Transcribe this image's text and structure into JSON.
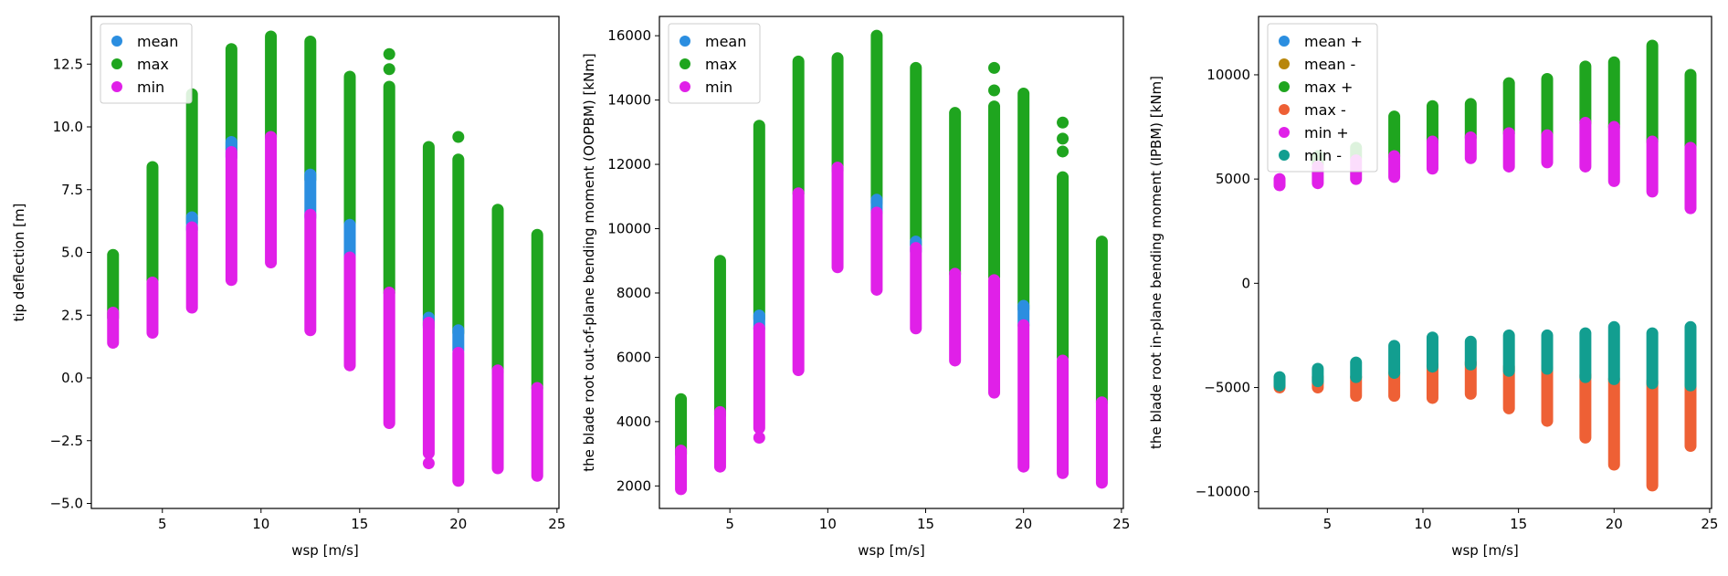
{
  "chart_data": [
    {
      "type": "scatter",
      "xlabel": "wsp [m/s]",
      "ylabel": "tip deflection [m]",
      "xlim": [
        1.4,
        25.1
      ],
      "ylim": [
        -5.2,
        14.4
      ],
      "xticks": [
        5,
        10,
        15,
        20,
        25
      ],
      "yticks": [
        -5.0,
        -2.5,
        0.0,
        2.5,
        5.0,
        7.5,
        10.0,
        12.5
      ],
      "ytick_decimals": 1,
      "legend_position": "top-left",
      "series": [
        {
          "name": "max",
          "color": "#1fa51f",
          "ranges": [
            {
              "x": 2.5,
              "low": 2.4,
              "high": 4.9
            },
            {
              "x": 4.5,
              "low": 3.9,
              "high": 8.4
            },
            {
              "x": 6.5,
              "low": 6.2,
              "high": 11.3
            },
            {
              "x": 8.5,
              "low": 9.1,
              "high": 13.1
            },
            {
              "x": 10.5,
              "low": 9.6,
              "high": 13.6
            },
            {
              "x": 12.5,
              "low": 7.9,
              "high": 13.4
            },
            {
              "x": 14.5,
              "low": 6.0,
              "high": 12.0
            },
            {
              "x": 16.5,
              "low": 3.4,
              "high": 11.6
            },
            {
              "x": 18.5,
              "low": 2.1,
              "high": 9.2
            },
            {
              "x": 20.0,
              "low": 1.8,
              "high": 8.7
            },
            {
              "x": 22.0,
              "low": 0.2,
              "high": 6.7
            },
            {
              "x": 24.0,
              "low": -0.4,
              "high": 5.7
            }
          ],
          "extras": [
            {
              "x": 16.5,
              "y": 12.3
            },
            {
              "x": 16.5,
              "y": 12.9
            },
            {
              "x": 20.0,
              "y": 9.6
            }
          ]
        },
        {
          "name": "mean",
          "color": "#2b8ee0",
          "ranges": [
            {
              "x": 6.5,
              "low": 5.9,
              "high": 6.4
            },
            {
              "x": 8.5,
              "low": 8.8,
              "high": 9.4
            },
            {
              "x": 12.5,
              "low": 6.4,
              "high": 8.1
            },
            {
              "x": 14.5,
              "low": 4.6,
              "high": 6.1
            },
            {
              "x": 18.5,
              "low": 2.0,
              "high": 2.4
            },
            {
              "x": 20.0,
              "low": 1.1,
              "high": 1.9
            }
          ],
          "extras": []
        },
        {
          "name": "min",
          "color": "#e020e8",
          "ranges": [
            {
              "x": 2.5,
              "low": 1.4,
              "high": 2.6
            },
            {
              "x": 4.5,
              "low": 1.8,
              "high": 3.8
            },
            {
              "x": 6.5,
              "low": 2.8,
              "high": 6.0
            },
            {
              "x": 8.5,
              "low": 3.9,
              "high": 9.0
            },
            {
              "x": 10.5,
              "low": 4.6,
              "high": 9.6
            },
            {
              "x": 12.5,
              "low": 1.9,
              "high": 6.5
            },
            {
              "x": 14.5,
              "low": 0.5,
              "high": 4.8
            },
            {
              "x": 16.5,
              "low": -1.8,
              "high": 3.4
            },
            {
              "x": 18.5,
              "low": -3.0,
              "high": 2.2
            },
            {
              "x": 20.0,
              "low": -4.1,
              "high": 1.0
            },
            {
              "x": 22.0,
              "low": -3.6,
              "high": 0.3
            },
            {
              "x": 24.0,
              "low": -3.9,
              "high": -0.4
            }
          ],
          "extras": [
            {
              "x": 18.5,
              "y": -3.4
            }
          ]
        }
      ],
      "legend": [
        {
          "label": "mean",
          "color": "#2b8ee0"
        },
        {
          "label": "max",
          "color": "#1fa51f"
        },
        {
          "label": "min",
          "color": "#e020e8"
        }
      ]
    },
    {
      "type": "scatter",
      "xlabel": "wsp [m/s]",
      "ylabel": "the blade root out-of-plane bending moment (OOPBM) [kNm]",
      "xlim": [
        1.4,
        25.1
      ],
      "ylim": [
        1300,
        16600
      ],
      "xticks": [
        5,
        10,
        15,
        20,
        25
      ],
      "yticks": [
        2000,
        4000,
        6000,
        8000,
        10000,
        12000,
        14000,
        16000
      ],
      "ytick_decimals": 0,
      "legend_position": "top-left",
      "series": [
        {
          "name": "max",
          "color": "#1fa51f",
          "ranges": [
            {
              "x": 2.5,
              "low": 3000,
              "high": 4700
            },
            {
              "x": 4.5,
              "low": 4200,
              "high": 9000
            },
            {
              "x": 6.5,
              "low": 7200,
              "high": 13200
            },
            {
              "x": 8.5,
              "low": 11100,
              "high": 15200
            },
            {
              "x": 10.5,
              "low": 11800,
              "high": 15300
            },
            {
              "x": 12.5,
              "low": 10800,
              "high": 16000
            },
            {
              "x": 14.5,
              "low": 9500,
              "high": 15000
            },
            {
              "x": 16.5,
              "low": 8600,
              "high": 13600
            },
            {
              "x": 18.5,
              "low": 8500,
              "high": 13800
            },
            {
              "x": 20.0,
              "low": 7500,
              "high": 14200
            },
            {
              "x": 22.0,
              "low": 6000,
              "high": 11600
            },
            {
              "x": 24.0,
              "low": 4600,
              "high": 9600
            }
          ],
          "extras": [
            {
              "x": 18.5,
              "y": 14300
            },
            {
              "x": 18.5,
              "y": 15000
            },
            {
              "x": 22.0,
              "y": 12400
            },
            {
              "x": 22.0,
              "y": 12800
            },
            {
              "x": 22.0,
              "y": 13300
            }
          ]
        },
        {
          "name": "mean",
          "color": "#2b8ee0",
          "ranges": [
            {
              "x": 6.5,
              "low": 6900,
              "high": 7300
            },
            {
              "x": 12.5,
              "low": 10500,
              "high": 10900
            },
            {
              "x": 14.5,
              "low": 9300,
              "high": 9600
            },
            {
              "x": 20.0,
              "low": 7000,
              "high": 7600
            }
          ],
          "extras": []
        },
        {
          "name": "min",
          "color": "#e020e8",
          "ranges": [
            {
              "x": 2.5,
              "low": 1900,
              "high": 3100
            },
            {
              "x": 4.5,
              "low": 2600,
              "high": 4300
            },
            {
              "x": 6.5,
              "low": 3800,
              "high": 6900
            },
            {
              "x": 8.5,
              "low": 5600,
              "high": 11100
            },
            {
              "x": 10.5,
              "low": 8800,
              "high": 11900
            },
            {
              "x": 12.5,
              "low": 8100,
              "high": 10500
            },
            {
              "x": 14.5,
              "low": 6900,
              "high": 9400
            },
            {
              "x": 16.5,
              "low": 5900,
              "high": 8600
            },
            {
              "x": 18.5,
              "low": 4900,
              "high": 8400
            },
            {
              "x": 20.0,
              "low": 2600,
              "high": 7000
            },
            {
              "x": 22.0,
              "low": 2400,
              "high": 5900
            },
            {
              "x": 24.0,
              "low": 2100,
              "high": 4600
            }
          ],
          "extras": [
            {
              "x": 6.5,
              "y": 3500
            }
          ]
        }
      ],
      "legend": [
        {
          "label": "mean",
          "color": "#2b8ee0"
        },
        {
          "label": "max",
          "color": "#1fa51f"
        },
        {
          "label": "min",
          "color": "#e020e8"
        }
      ]
    },
    {
      "type": "scatter",
      "xlabel": "wsp [m/s]",
      "ylabel": "the blade root in-plane bending moment (IPBM) [kNm]",
      "xlim": [
        1.4,
        25.1
      ],
      "ylim": [
        -10800,
        12800
      ],
      "xticks": [
        5,
        10,
        15,
        20,
        25
      ],
      "yticks": [
        -10000,
        -5000,
        0,
        5000,
        10000
      ],
      "ytick_decimals": 0,
      "legend_position": "top-left",
      "series": [
        {
          "name": "max -",
          "color": "#ee6035",
          "ranges": [
            {
              "x": 2.5,
              "low": -5000,
              "high": -4700
            },
            {
              "x": 4.5,
              "low": -5000,
              "high": -4500
            },
            {
              "x": 6.5,
              "low": -5400,
              "high": -4500
            },
            {
              "x": 8.5,
              "low": -5400,
              "high": -4300
            },
            {
              "x": 10.5,
              "low": -5500,
              "high": -3900
            },
            {
              "x": 12.5,
              "low": -5300,
              "high": -3800
            },
            {
              "x": 14.5,
              "low": -6000,
              "high": -4000
            },
            {
              "x": 16.5,
              "low": -6600,
              "high": -4000
            },
            {
              "x": 18.5,
              "low": -7400,
              "high": -4400
            },
            {
              "x": 20.0,
              "low": -8700,
              "high": -4600
            },
            {
              "x": 22.0,
              "low": -9700,
              "high": -4700
            },
            {
              "x": 24.0,
              "low": -7800,
              "high": -4800
            }
          ],
          "extras": []
        },
        {
          "name": "min -",
          "color": "#129e90",
          "ranges": [
            {
              "x": 2.5,
              "low": -4900,
              "high": -4500
            },
            {
              "x": 4.5,
              "low": -4700,
              "high": -4100
            },
            {
              "x": 6.5,
              "low": -4500,
              "high": -3800
            },
            {
              "x": 8.5,
              "low": -4300,
              "high": -3000
            },
            {
              "x": 10.5,
              "low": -4000,
              "high": -2600
            },
            {
              "x": 12.5,
              "low": -3900,
              "high": -2800
            },
            {
              "x": 14.5,
              "low": -4200,
              "high": -2500
            },
            {
              "x": 16.5,
              "low": -4100,
              "high": -2500
            },
            {
              "x": 18.5,
              "low": -4500,
              "high": -2400
            },
            {
              "x": 20.0,
              "low": -4600,
              "high": -2100
            },
            {
              "x": 22.0,
              "low": -4800,
              "high": -2400
            },
            {
              "x": 24.0,
              "low": -4900,
              "high": -2100
            }
          ],
          "extras": []
        },
        {
          "name": "max +",
          "color": "#1fa51f",
          "ranges": [
            {
              "x": 4.5,
              "low": 5700,
              "high": 6100
            },
            {
              "x": 6.5,
              "low": 6000,
              "high": 6500
            },
            {
              "x": 8.5,
              "low": 6100,
              "high": 8000
            },
            {
              "x": 10.5,
              "low": 6800,
              "high": 8500
            },
            {
              "x": 12.5,
              "low": 7000,
              "high": 8600
            },
            {
              "x": 14.5,
              "low": 7200,
              "high": 9600
            },
            {
              "x": 16.5,
              "low": 7100,
              "high": 9800
            },
            {
              "x": 18.5,
              "low": 7700,
              "high": 10400
            },
            {
              "x": 20.0,
              "low": 7500,
              "high": 10600
            },
            {
              "x": 22.0,
              "low": 6800,
              "high": 11400
            },
            {
              "x": 24.0,
              "low": 6600,
              "high": 10000
            }
          ],
          "extras": []
        },
        {
          "name": "min +",
          "color": "#e020e8",
          "ranges": [
            {
              "x": 2.5,
              "low": 4700,
              "high": 5000
            },
            {
              "x": 4.5,
              "low": 4800,
              "high": 5600
            },
            {
              "x": 6.5,
              "low": 5000,
              "high": 5900
            },
            {
              "x": 8.5,
              "low": 5100,
              "high": 6100
            },
            {
              "x": 10.5,
              "low": 5500,
              "high": 6800
            },
            {
              "x": 12.5,
              "low": 6000,
              "high": 7000
            },
            {
              "x": 14.5,
              "low": 5600,
              "high": 7200
            },
            {
              "x": 16.5,
              "low": 5800,
              "high": 7100
            },
            {
              "x": 18.5,
              "low": 5600,
              "high": 7700
            },
            {
              "x": 20.0,
              "low": 4900,
              "high": 7500
            },
            {
              "x": 22.0,
              "low": 4400,
              "high": 6800
            },
            {
              "x": 24.0,
              "low": 3600,
              "high": 6500
            }
          ],
          "extras": []
        }
      ],
      "legend": [
        {
          "label": "mean +",
          "color": "#2b8ee0"
        },
        {
          "label": "mean -",
          "color": "#b8860b"
        },
        {
          "label": "max +",
          "color": "#1fa51f"
        },
        {
          "label": "max -",
          "color": "#ee6035"
        },
        {
          "label": "min +",
          "color": "#e020e8"
        },
        {
          "label": "min -",
          "color": "#129e90"
        }
      ]
    }
  ]
}
